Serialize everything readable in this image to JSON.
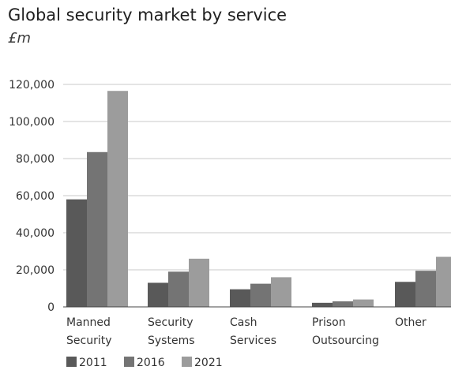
{
  "chart_data": {
    "type": "bar",
    "title": "Global security market by service",
    "subtitle": "£m",
    "xlabel": "",
    "ylabel": "",
    "ylim": [
      0,
      120000
    ],
    "yticks": [
      0,
      20000,
      40000,
      60000,
      80000,
      100000,
      120000
    ],
    "ytick_labels": [
      "0",
      "20,000",
      "40,000",
      "60,000",
      "80,000",
      "100,000",
      "120,000"
    ],
    "grid": true,
    "legend_position": "bottom-left",
    "categories": [
      [
        "Manned",
        "Security"
      ],
      [
        "Security",
        "Systems"
      ],
      [
        "Cash",
        "Services"
      ],
      [
        "Prison",
        "Outsourcing"
      ],
      [
        "Other"
      ]
    ],
    "series": [
      {
        "name": "2011",
        "color": "#595959",
        "values": [
          58000,
          13000,
          9500,
          2200,
          13500
        ]
      },
      {
        "name": "2016",
        "color": "#747474",
        "values": [
          83500,
          19000,
          12500,
          3000,
          19500
        ]
      },
      {
        "name": "2021",
        "color": "#9c9c9c",
        "values": [
          116500,
          26000,
          16000,
          4000,
          27000
        ]
      }
    ]
  }
}
